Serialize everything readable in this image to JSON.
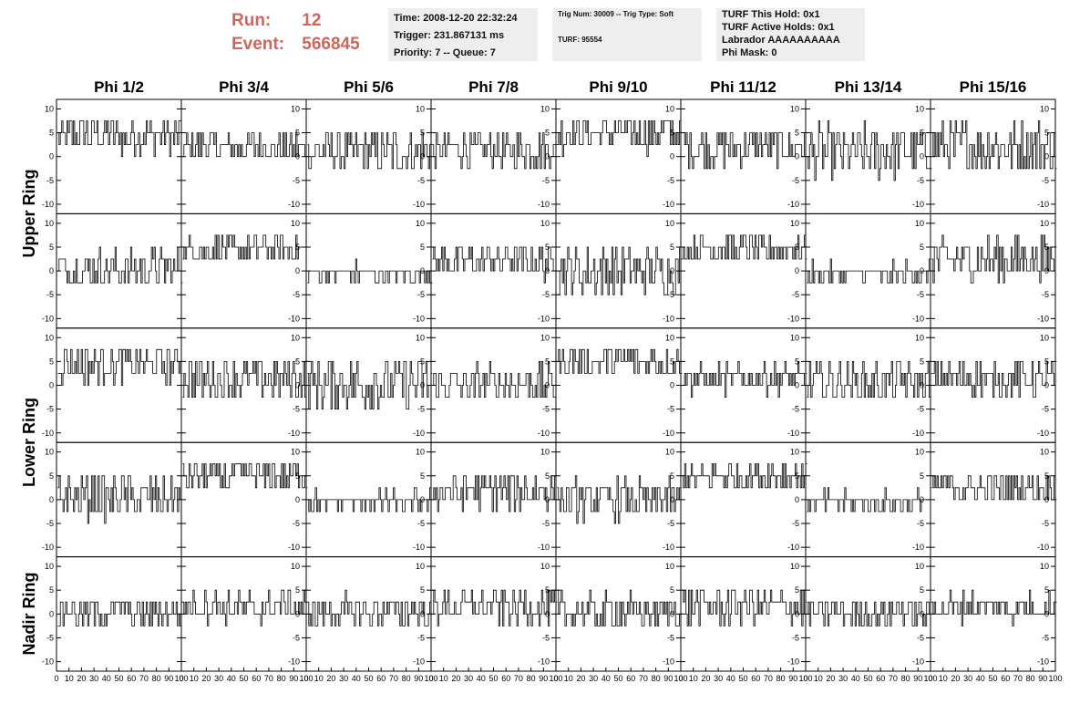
{
  "header": {
    "run_label": "Run:",
    "run_value": "12",
    "event_label": "Event:",
    "event_value": "566845"
  },
  "info_box_1": {
    "time": "Time: 2008-12-20 22:32:24",
    "trigger": "Trigger: 231.867131 ms",
    "priority": "Priority: 7 -- Queue: 7"
  },
  "info_box_2": {
    "trig": "Trig Num: 30009 -- Trig Type: Soft",
    "turf": "TURF: 95554"
  },
  "info_box_3": {
    "this_hold": "TURF This Hold: 0x1",
    "active_holds": "TURF Active Holds: 0x1",
    "labrador": "Labrador AAAAAAAAAA",
    "phi_mask": "Phi Mask: 0"
  },
  "colors": {
    "header_red": "#d0655c",
    "info_bg": "#eeeeee",
    "trace": "#000000"
  },
  "chart_data": {
    "type": "line",
    "columns": [
      "Phi 1/2",
      "Phi 3/4",
      "Phi 5/6",
      "Phi 7/8",
      "Phi 9/10",
      "Phi 11/12",
      "Phi 13/14",
      "Phi 15/16"
    ],
    "rows": [
      "Upper Ring",
      "Upper Ring",
      "Lower Ring",
      "Lower Ring",
      "Nadir Ring"
    ],
    "row_labels": [
      {
        "text": "Upper Ring",
        "rows": [
          0,
          1
        ]
      },
      {
        "text": "Lower Ring",
        "rows": [
          2,
          3
        ]
      },
      {
        "text": "Nadir Ring",
        "rows": [
          4
        ]
      }
    ],
    "xlim": [
      0,
      100
    ],
    "ylim": [
      -12,
      12
    ],
    "xticks": [
      0,
      10,
      20,
      30,
      40,
      50,
      60,
      70,
      80,
      90,
      100
    ],
    "yticks": [
      -10,
      -5,
      0,
      5,
      10
    ],
    "samples_per_trace": 96,
    "grid": false,
    "traces": [
      [
        {
          "mean": 4.5,
          "amp": 4.0
        },
        {
          "mean": 2.0,
          "amp": 3.0
        },
        {
          "mean": 1.0,
          "amp": 4.5
        },
        {
          "mean": 1.5,
          "amp": 3.5
        },
        {
          "mean": 5.0,
          "amp": 4.0
        },
        {
          "mean": 2.0,
          "amp": 4.0
        },
        {
          "mean": 1.0,
          "amp": 5.5
        },
        {
          "mean": 2.0,
          "amp": 5.5
        }
      ],
      [
        {
          "mean": 0.5,
          "amp": 4.0
        },
        {
          "mean": 4.5,
          "amp": 3.0
        },
        {
          "mean": -0.5,
          "amp": 2.0
        },
        {
          "mean": 2.0,
          "amp": 3.5
        },
        {
          "mean": 0.0,
          "amp": 5.0
        },
        {
          "mean": 4.5,
          "amp": 3.0
        },
        {
          "mean": -0.5,
          "amp": 2.0
        },
        {
          "mean": 2.5,
          "amp": 4.5
        }
      ],
      [
        {
          "mean": 4.5,
          "amp": 4.0
        },
        {
          "mean": 1.5,
          "amp": 4.0
        },
        {
          "mean": 0.5,
          "amp": 5.5
        },
        {
          "mean": 0.5,
          "amp": 4.0
        },
        {
          "mean": 5.0,
          "amp": 3.5
        },
        {
          "mean": 1.5,
          "amp": 3.0
        },
        {
          "mean": 0.5,
          "amp": 4.0
        },
        {
          "mean": 1.5,
          "amp": 3.5
        }
      ],
      [
        {
          "mean": 0.5,
          "amp": 4.5
        },
        {
          "mean": 5.0,
          "amp": 3.0
        },
        {
          "mean": -0.5,
          "amp": 2.0
        },
        {
          "mean": 2.0,
          "amp": 4.0
        },
        {
          "mean": 0.0,
          "amp": 4.0
        },
        {
          "mean": 5.0,
          "amp": 3.0
        },
        {
          "mean": -0.5,
          "amp": 2.0
        },
        {
          "mean": 2.5,
          "amp": 3.0
        }
      ],
      [
        {
          "mean": 0.5,
          "amp": 3.0
        },
        {
          "mean": 1.5,
          "amp": 3.0
        },
        {
          "mean": 0.5,
          "amp": 3.5
        },
        {
          "mean": 1.5,
          "amp": 3.5
        },
        {
          "mean": 0.5,
          "amp": 3.5
        },
        {
          "mean": 1.5,
          "amp": 4.0
        },
        {
          "mean": 0.5,
          "amp": 3.0
        },
        {
          "mean": 1.5,
          "amp": 3.0
        }
      ]
    ]
  }
}
